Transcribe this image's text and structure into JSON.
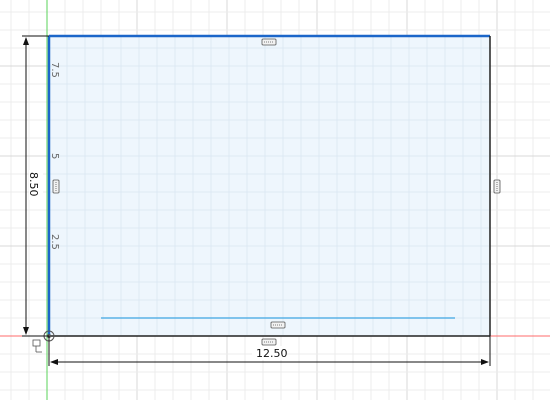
{
  "sketch": {
    "width_dimension": "12.50",
    "height_dimension": "8.50",
    "axis_ticks": [
      "2.5",
      "5",
      "7.5"
    ]
  },
  "colors": {
    "background": "#ffffff",
    "grid_minor": "#ececec",
    "grid_major": "#d9d9d9",
    "rect_fill": "#eef6fd",
    "rect_edge_selected": "#1b66c9",
    "rect_edge": "#222222",
    "construction_line": "#5ab2e6",
    "origin_axis_red": "#ff6b6b",
    "origin_axis_green": "#5ad35a",
    "dimension_line": "#111111",
    "constraint_glyph": "#555555"
  },
  "icons": {
    "constraint_marker": "horizontal-vertical-constraint-icon",
    "origin": "sketch-origin-icon",
    "coincident": "coincident-constraint-icon"
  }
}
